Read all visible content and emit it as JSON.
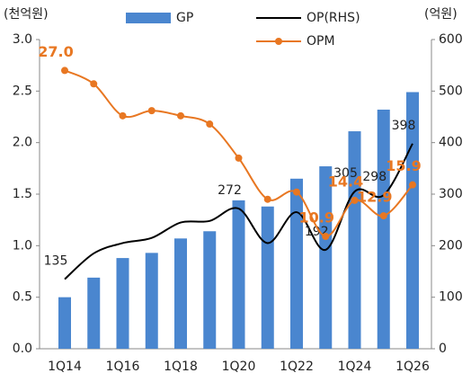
{
  "chart_data": {
    "type": "bar-line",
    "y_label": "(천억원)",
    "y2_label": "(억원)",
    "categories": [
      "1Q14",
      null,
      "1Q16",
      null,
      "1Q18",
      null,
      "1Q20",
      null,
      "1Q22",
      null,
      "1Q24",
      null,
      "1Q26"
    ],
    "series": [
      {
        "name": "GP",
        "type": "bar",
        "color": "#4a86cf",
        "axis": "y",
        "values": [
          0.5,
          0.69,
          0.88,
          0.93,
          1.07,
          1.14,
          1.44,
          1.38,
          1.65,
          1.77,
          2.11,
          2.32,
          2.49
        ]
      },
      {
        "name": "OP(RHS)",
        "type": "line",
        "color": "#000000",
        "axis": "y2",
        "values": [
          135,
          185,
          205,
          215,
          245,
          248,
          272,
          205,
          265,
          192,
          305,
          298,
          398
        ],
        "value_labels": [
          "135",
          null,
          null,
          null,
          null,
          null,
          "272",
          null,
          null,
          "192",
          "305",
          "298",
          "398"
        ]
      },
      {
        "name": "OPM",
        "type": "line",
        "color": "#e87722",
        "axis": "y3",
        "markers": true,
        "values": [
          27.0,
          25.7,
          22.6,
          23.1,
          22.6,
          21.8,
          18.5,
          14.5,
          15.2,
          10.9,
          14.4,
          12.9,
          15.9
        ],
        "value_labels": [
          "27.0",
          null,
          null,
          null,
          null,
          null,
          null,
          null,
          null,
          "10.9",
          "14.4",
          "12.9",
          "15.9"
        ]
      }
    ],
    "ylim": [
      0,
      3.0
    ],
    "yticks": [
      {
        "value": 0,
        "label": "0.0"
      },
      0.5,
      {
        "value": 1,
        "label": "1.0"
      },
      1.5,
      {
        "value": 2,
        "label": "2.0"
      },
      2.5,
      {
        "value": 3,
        "label": "3.0"
      }
    ],
    "y2lim": [
      0,
      600
    ],
    "y2ticks": [
      0,
      100,
      200,
      300,
      400,
      500,
      600
    ],
    "y3lim": [
      0,
      30
    ]
  }
}
